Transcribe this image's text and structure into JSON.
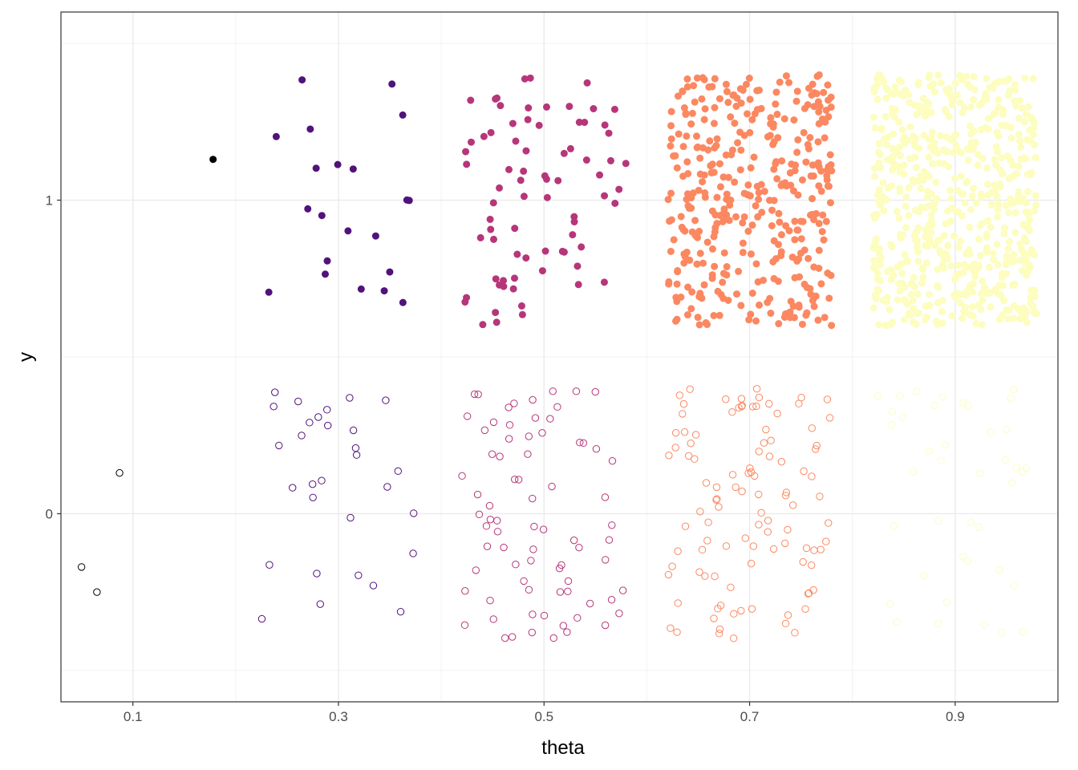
{
  "chart_data": {
    "type": "scatter",
    "xlabel": "theta",
    "ylabel": "y",
    "xlim": [
      0.03,
      1.0
    ],
    "ylim": [
      -0.6,
      1.6
    ],
    "x_ticks": [
      0.1,
      0.3,
      0.5,
      0.7,
      0.9
    ],
    "x_tick_labels": [
      "0.1",
      "0.3",
      "0.5",
      "0.7",
      "0.9"
    ],
    "y_ticks": [
      0,
      1
    ],
    "y_tick_labels": [
      "0",
      "1"
    ],
    "grid": true,
    "legend": "none",
    "jitter": {
      "x": 0.08,
      "y": 0.4
    },
    "series": [
      {
        "theta_bin": 0.1,
        "y": 1,
        "count": 1,
        "color": "#000004"
      },
      {
        "theta_bin": 0.1,
        "y": 0,
        "count": 3,
        "color": "#000004"
      },
      {
        "theta_bin": 0.3,
        "y": 1,
        "count": 21,
        "color": "#51127C"
      },
      {
        "theta_bin": 0.3,
        "y": 0,
        "count": 30,
        "color": "#51127C"
      },
      {
        "theta_bin": 0.5,
        "y": 1,
        "count": 76,
        "color": "#B63679"
      },
      {
        "theta_bin": 0.5,
        "y": 0,
        "count": 76,
        "color": "#B63679"
      },
      {
        "theta_bin": 0.7,
        "y": 1,
        "count": 380,
        "color": "#FB8861"
      },
      {
        "theta_bin": 0.7,
        "y": 0,
        "count": 105,
        "color": "#FB8861"
      },
      {
        "theta_bin": 0.9,
        "y": 1,
        "count": 610,
        "color": "#FCFDBF"
      },
      {
        "theta_bin": 0.9,
        "y": 0,
        "count": 40,
        "color": "#FCFDBF"
      }
    ],
    "points": [
      [
        0.087,
        0.13,
        0
      ],
      [
        0.05,
        -0.17,
        0
      ],
      [
        0.065,
        -0.25,
        0
      ],
      [
        0.178,
        1.13,
        1
      ]
    ]
  }
}
